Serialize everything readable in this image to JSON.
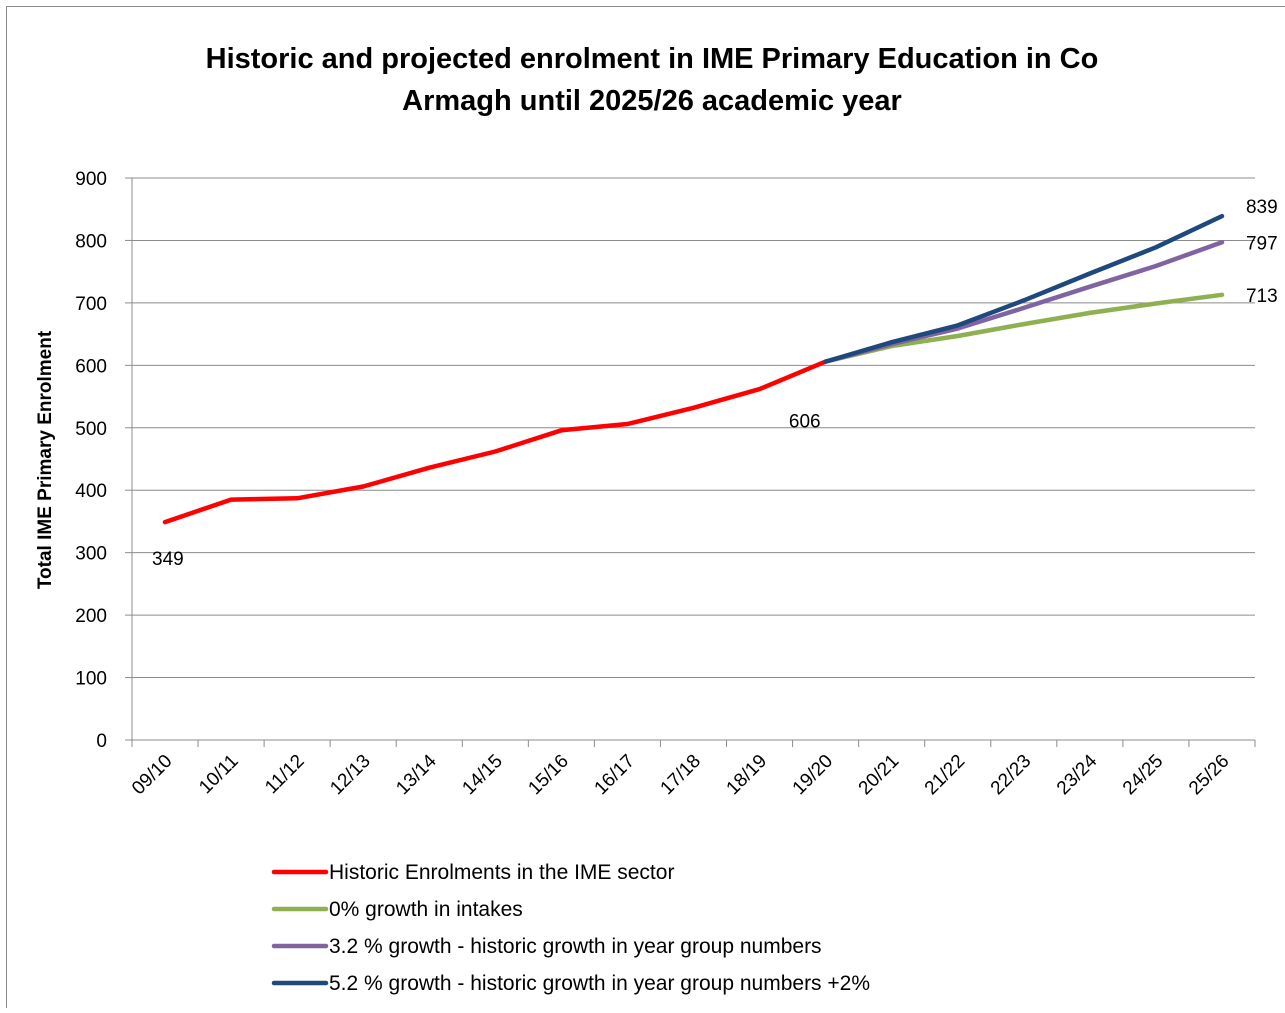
{
  "chart_data": {
    "type": "line",
    "title_lines": [
      "Historic and projected enrolment in IME Primary Education in Co",
      "Armagh until 2025/26 academic year"
    ],
    "ylabel": "Total IME Primary Enrolment",
    "xlabel": "",
    "ylim": [
      0,
      900
    ],
    "yticks": [
      0,
      100,
      200,
      300,
      400,
      500,
      600,
      700,
      800,
      900
    ],
    "grid": true,
    "legend_position": "bottom",
    "categories": [
      "09/10",
      "10/11",
      "11/12",
      "12/13",
      "13/14",
      "14/15",
      "15/16",
      "16/17",
      "17/18",
      "18/19",
      "19/20",
      "20/21",
      "21/22",
      "22/23",
      "23/24",
      "24/25",
      "25/26"
    ],
    "series": [
      {
        "name": "Historic Enrolments in the IME sector",
        "color": "#ff0000",
        "values": [
          349,
          385,
          387,
          406,
          436,
          462,
          496,
          506,
          532,
          562,
          606,
          null,
          null,
          null,
          null,
          null,
          null
        ]
      },
      {
        "name": "0% growth in intakes",
        "color": "#8fb050",
        "values": [
          null,
          null,
          null,
          null,
          null,
          null,
          null,
          null,
          null,
          null,
          606,
          631,
          647,
          666,
          684,
          699,
          713
        ]
      },
      {
        "name": "3.2 % growth - historic growth in year group numbers",
        "color": "#8064a2",
        "values": [
          null,
          null,
          null,
          null,
          null,
          null,
          null,
          null,
          null,
          null,
          606,
          634,
          659,
          692,
          726,
          759,
          797
        ]
      },
      {
        "name": "5.2 % growth - historic growth in year group numbers +2%",
        "color": "#1f497d",
        "values": [
          null,
          null,
          null,
          null,
          null,
          null,
          null,
          null,
          null,
          null,
          606,
          637,
          664,
          704,
          747,
          789,
          839
        ]
      }
    ],
    "annotations": [
      {
        "text": "349",
        "category": "09/10",
        "value": 349
      },
      {
        "text": "606",
        "category": "19/20",
        "value": 606
      },
      {
        "text": "713",
        "category": "25/26",
        "value": 713
      },
      {
        "text": "797",
        "category": "25/26",
        "value": 797
      },
      {
        "text": "839",
        "category": "25/26",
        "value": 839
      }
    ]
  }
}
